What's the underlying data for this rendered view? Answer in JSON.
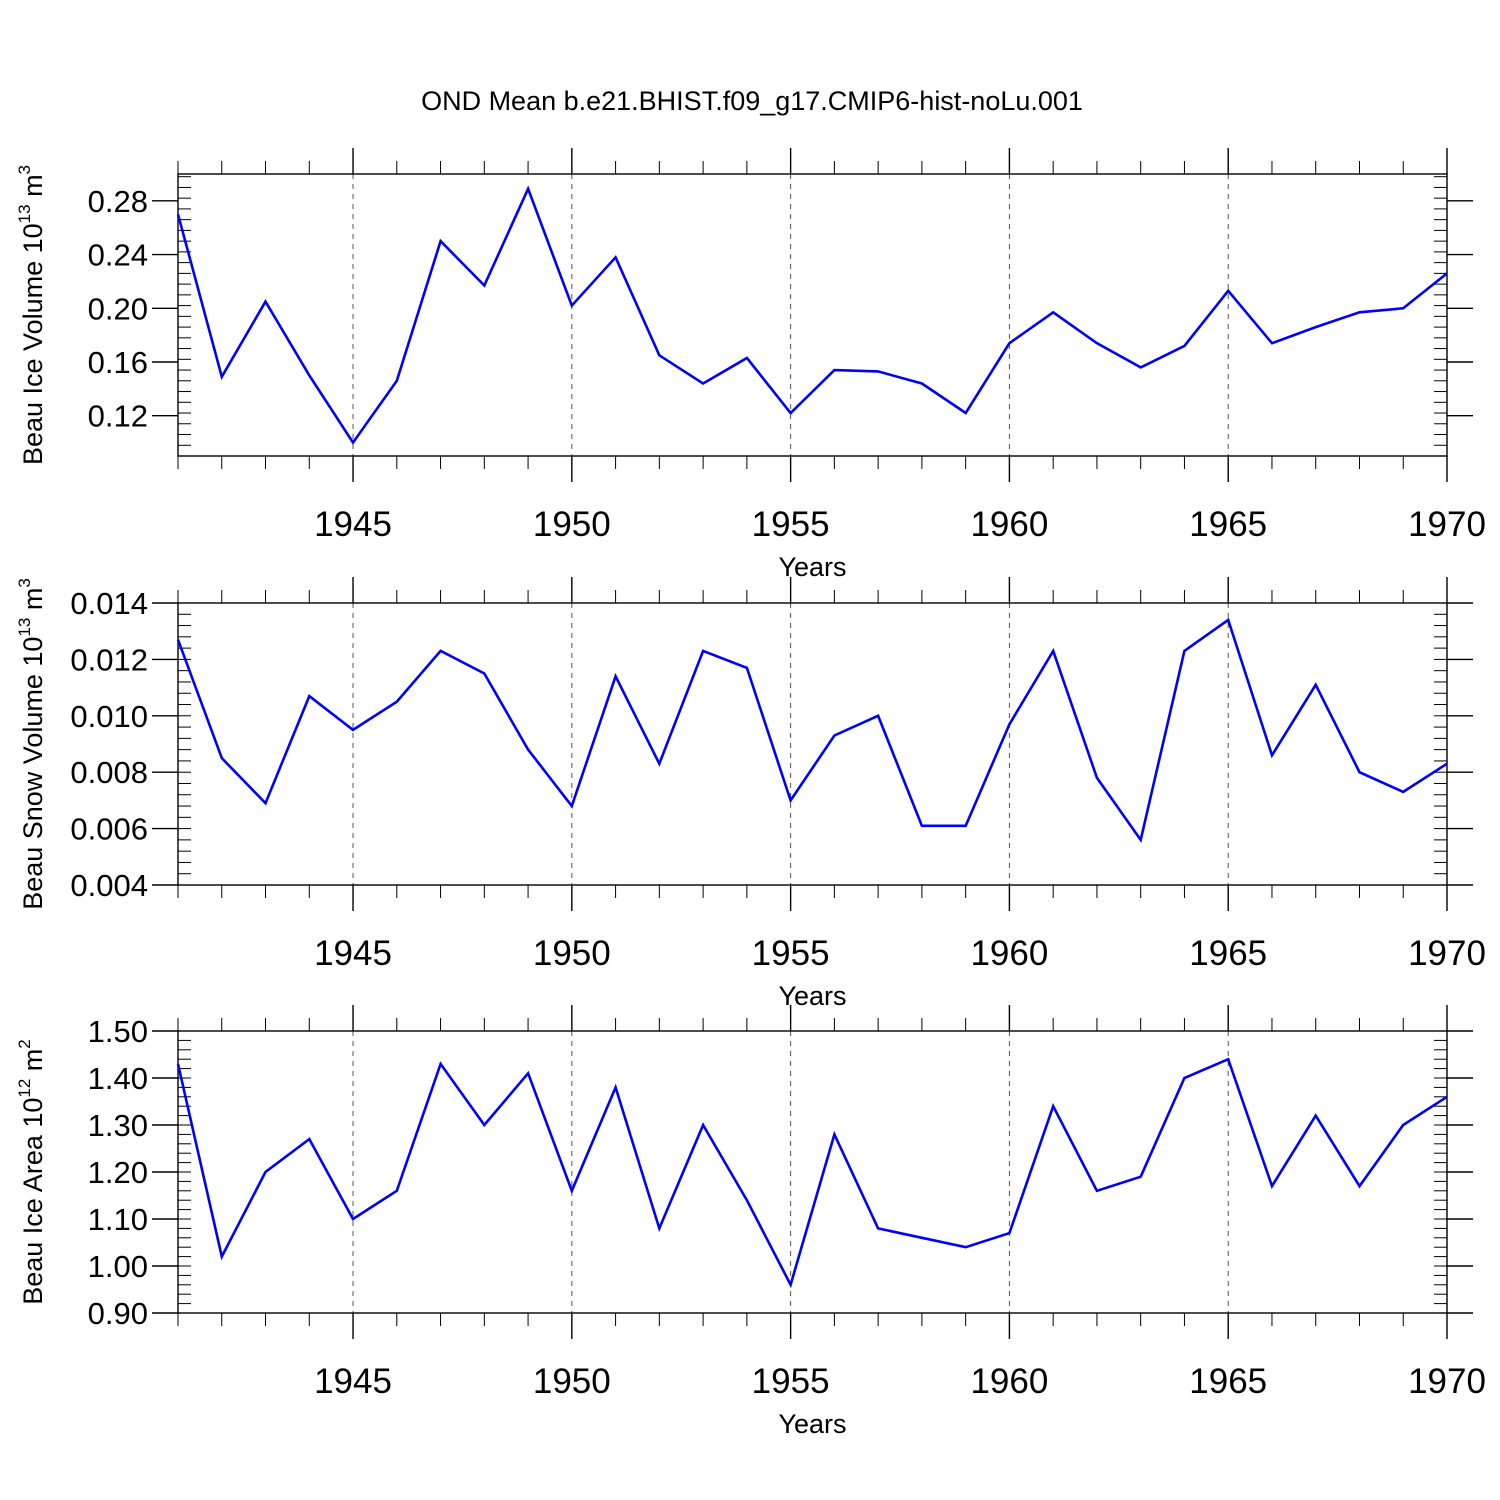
{
  "figure": {
    "title": "OND Mean b.e21.BHIST.f09_g17.CMIP6-hist-noLu.001"
  },
  "colors": {
    "line": "#0000ff",
    "axis": "#000000",
    "grid": "#555555"
  },
  "chart_data": [
    {
      "type": "line",
      "ylabel_main": "Beau Ice Volume 10",
      "ylabel_exp": "13",
      "ylabel_unit": "m",
      "ylabel_unit_exp": "3",
      "xlabel": "Years",
      "xlim": [
        1941,
        1970
      ],
      "ylim": [
        0.09,
        0.3
      ],
      "xticks": [
        1945,
        1950,
        1955,
        1960,
        1965,
        1970
      ],
      "yticks": [
        0.12,
        0.16,
        0.2,
        0.24,
        0.28
      ],
      "ytick_labels": [
        "0.12",
        "0.16",
        "0.20",
        "0.24",
        "0.28"
      ],
      "grid_x": [
        1945,
        1950,
        1955,
        1960,
        1965
      ],
      "x": [
        1941,
        1942,
        1943,
        1944,
        1945,
        1946,
        1947,
        1948,
        1949,
        1950,
        1951,
        1952,
        1953,
        1954,
        1955,
        1956,
        1957,
        1958,
        1959,
        1960,
        1961,
        1962,
        1963,
        1964,
        1965,
        1966,
        1967,
        1968,
        1969,
        1970
      ],
      "values": [
        0.27,
        0.149,
        0.205,
        0.15,
        0.1,
        0.146,
        0.25,
        0.217,
        0.289,
        0.202,
        0.238,
        0.165,
        0.144,
        0.163,
        0.122,
        0.154,
        0.153,
        0.144,
        0.122,
        0.174,
        0.197,
        0.174,
        0.156,
        0.172,
        0.213,
        0.174,
        0.186,
        0.197,
        0.2,
        0.226
      ]
    },
    {
      "type": "line",
      "ylabel_main": "Beau Snow Volume 10",
      "ylabel_exp": "13",
      "ylabel_unit": "m",
      "ylabel_unit_exp": "3",
      "xlabel": "Years",
      "xlim": [
        1941,
        1970
      ],
      "ylim": [
        0.004,
        0.014
      ],
      "xticks": [
        1945,
        1950,
        1955,
        1960,
        1965,
        1970
      ],
      "yticks": [
        0.004,
        0.006,
        0.008,
        0.01,
        0.012,
        0.014
      ],
      "ytick_labels": [
        "0.004",
        "0.006",
        "0.008",
        "0.010",
        "0.012",
        "0.014"
      ],
      "grid_x": [
        1945,
        1950,
        1955,
        1960,
        1965
      ],
      "x": [
        1941,
        1942,
        1943,
        1944,
        1945,
        1946,
        1947,
        1948,
        1949,
        1950,
        1951,
        1952,
        1953,
        1954,
        1955,
        1956,
        1957,
        1958,
        1959,
        1960,
        1961,
        1962,
        1963,
        1964,
        1965,
        1966,
        1967,
        1968,
        1969,
        1970
      ],
      "values": [
        0.0127,
        0.0085,
        0.0069,
        0.0107,
        0.0095,
        0.0105,
        0.0123,
        0.0115,
        0.0088,
        0.0068,
        0.0114,
        0.0083,
        0.0123,
        0.0117,
        0.007,
        0.0093,
        0.01,
        0.0061,
        0.0061,
        0.0097,
        0.0123,
        0.0078,
        0.0056,
        0.0123,
        0.0134,
        0.0086,
        0.0111,
        0.008,
        0.0073,
        0.0083
      ]
    },
    {
      "type": "line",
      "ylabel_main": "Beau Ice Area 10",
      "ylabel_exp": "12",
      "ylabel_unit": "m",
      "ylabel_unit_exp": "2",
      "xlabel": "Years",
      "xlim": [
        1941,
        1970
      ],
      "ylim": [
        0.9,
        1.5
      ],
      "xticks": [
        1945,
        1950,
        1955,
        1960,
        1965,
        1970
      ],
      "yticks": [
        0.9,
        1.0,
        1.1,
        1.2,
        1.3,
        1.4,
        1.5
      ],
      "ytick_labels": [
        "0.90",
        "1.00",
        "1.10",
        "1.20",
        "1.30",
        "1.40",
        "1.50"
      ],
      "grid_x": [
        1945,
        1950,
        1955,
        1960,
        1965
      ],
      "x": [
        1941,
        1942,
        1943,
        1944,
        1945,
        1946,
        1947,
        1948,
        1949,
        1950,
        1951,
        1952,
        1953,
        1954,
        1955,
        1956,
        1957,
        1958,
        1959,
        1960,
        1961,
        1962,
        1963,
        1964,
        1965,
        1966,
        1967,
        1968,
        1969,
        1970
      ],
      "values": [
        1.43,
        1.02,
        1.2,
        1.27,
        1.1,
        1.16,
        1.43,
        1.3,
        1.41,
        1.16,
        1.38,
        1.08,
        1.3,
        1.14,
        0.96,
        1.28,
        1.08,
        1.06,
        1.04,
        1.07,
        1.34,
        1.16,
        1.19,
        1.4,
        1.44,
        1.17,
        1.32,
        1.17,
        1.3,
        1.36
      ]
    }
  ]
}
